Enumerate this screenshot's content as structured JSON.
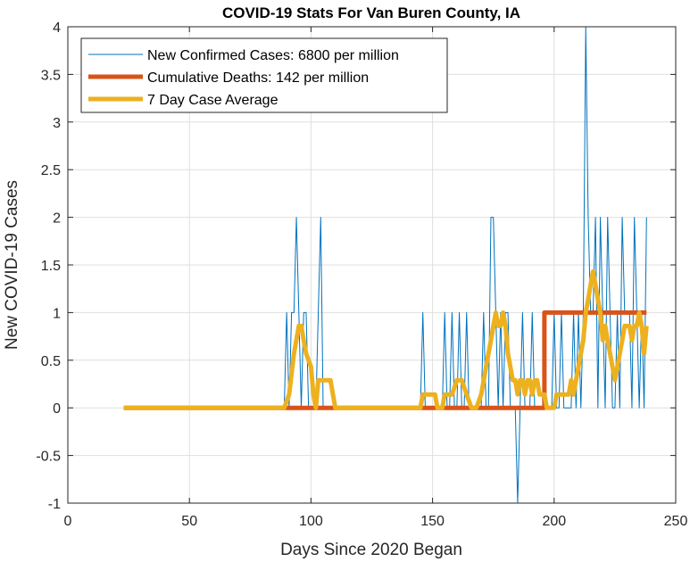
{
  "chart_data": {
    "type": "line",
    "title": "COVID-19 Stats For Van Buren County, IA",
    "xlabel": "Days Since 2020 Began",
    "ylabel": "New COVID-19 Cases",
    "xlim": [
      0,
      250
    ],
    "ylim": [
      -1,
      4
    ],
    "xticks": [
      "0",
      "50",
      "100",
      "150",
      "200",
      "250"
    ],
    "yticks": [
      "-1",
      "-0.5",
      "0",
      "0.5",
      "1",
      "1.5",
      "2",
      "2.5",
      "3",
      "3.5",
      "4"
    ],
    "grid": true,
    "legend_position": "top-left",
    "series": [
      {
        "name": "New Confirmed Cases: 6800 per million",
        "color": "#0072BD",
        "width": "thin",
        "points": [
          [
            23,
            0
          ],
          [
            89,
            0
          ],
          [
            90,
            1
          ],
          [
            91,
            0
          ],
          [
            92,
            1
          ],
          [
            93,
            1
          ],
          [
            94,
            2
          ],
          [
            95,
            1
          ],
          [
            96,
            0
          ],
          [
            97,
            1
          ],
          [
            98,
            1
          ],
          [
            99,
            0
          ],
          [
            100,
            0
          ],
          [
            101,
            0
          ],
          [
            102,
            0
          ],
          [
            103,
            1
          ],
          [
            104,
            2
          ],
          [
            105,
            0
          ],
          [
            106,
            0
          ],
          [
            107,
            0
          ],
          [
            110,
            0
          ],
          [
            145,
            0
          ],
          [
            146,
            1
          ],
          [
            147,
            0
          ],
          [
            148,
            0
          ],
          [
            150,
            0
          ],
          [
            154,
            0
          ],
          [
            155,
            1
          ],
          [
            156,
            0
          ],
          [
            157,
            0
          ],
          [
            158,
            1
          ],
          [
            159,
            0
          ],
          [
            160,
            0
          ],
          [
            161,
            1
          ],
          [
            162,
            0
          ],
          [
            163,
            0
          ],
          [
            164,
            1
          ],
          [
            165,
            0
          ],
          [
            170,
            0
          ],
          [
            171,
            1
          ],
          [
            172,
            0
          ],
          [
            173,
            0
          ],
          [
            174,
            2
          ],
          [
            175,
            2
          ],
          [
            176,
            1
          ],
          [
            177,
            0
          ],
          [
            178,
            1
          ],
          [
            179,
            0
          ],
          [
            180,
            1
          ],
          [
            181,
            1
          ],
          [
            182,
            0
          ],
          [
            183,
            0
          ],
          [
            184,
            0
          ],
          [
            185,
            -1
          ],
          [
            186,
            0
          ],
          [
            187,
            1
          ],
          [
            188,
            0
          ],
          [
            189,
            0
          ],
          [
            190,
            0
          ],
          [
            191,
            1
          ],
          [
            192,
            0
          ],
          [
            193,
            0
          ],
          [
            194,
            0
          ],
          [
            195,
            0
          ],
          [
            196,
            0
          ],
          [
            197,
            0
          ],
          [
            198,
            0
          ],
          [
            199,
            0
          ],
          [
            200,
            1
          ],
          [
            201,
            0
          ],
          [
            202,
            0
          ],
          [
            203,
            1
          ],
          [
            204,
            0
          ],
          [
            205,
            0
          ],
          [
            206,
            0
          ],
          [
            207,
            0
          ],
          [
            208,
            1
          ],
          [
            209,
            0
          ],
          [
            210,
            1
          ],
          [
            211,
            0
          ],
          [
            212,
            1
          ],
          [
            213,
            4
          ],
          [
            214,
            2
          ],
          [
            215,
            1
          ],
          [
            216,
            1
          ],
          [
            217,
            2
          ],
          [
            218,
            0
          ],
          [
            219,
            2
          ],
          [
            220,
            1
          ],
          [
            221,
            0
          ],
          [
            222,
            2
          ],
          [
            223,
            1
          ],
          [
            224,
            0
          ],
          [
            225,
            0
          ],
          [
            226,
            1
          ],
          [
            227,
            0
          ],
          [
            228,
            2
          ],
          [
            229,
            1
          ],
          [
            230,
            1
          ],
          [
            231,
            1
          ],
          [
            232,
            0
          ],
          [
            233,
            2
          ],
          [
            234,
            1
          ],
          [
            235,
            0
          ],
          [
            236,
            1
          ],
          [
            237,
            0
          ],
          [
            238,
            2
          ]
        ]
      },
      {
        "name": "Cumulative Deaths: 142 per million",
        "color": "#D95319",
        "width": "thick",
        "points": [
          [
            23,
            0
          ],
          [
            196,
            0
          ],
          [
            196,
            1
          ],
          [
            238,
            1
          ]
        ]
      },
      {
        "name": "7 Day Case Average",
        "color": "#EDB120",
        "width": "thick",
        "points": [
          [
            23,
            0
          ],
          [
            89,
            0
          ],
          [
            91,
            0.14
          ],
          [
            93,
            0.57
          ],
          [
            95,
            0.86
          ],
          [
            96,
            0.86
          ],
          [
            97,
            0.71
          ],
          [
            98,
            0.57
          ],
          [
            100,
            0.43
          ],
          [
            101,
            0.14
          ],
          [
            102,
            0
          ],
          [
            103,
            0.29
          ],
          [
            108,
            0.29
          ],
          [
            110,
            0
          ],
          [
            145,
            0
          ],
          [
            146,
            0.14
          ],
          [
            151,
            0.14
          ],
          [
            152,
            0
          ],
          [
            154,
            0
          ],
          [
            155,
            0.14
          ],
          [
            158,
            0.14
          ],
          [
            160,
            0.29
          ],
          [
            162,
            0.29
          ],
          [
            164,
            0.14
          ],
          [
            166,
            0
          ],
          [
            168,
            0
          ],
          [
            170,
            0.14
          ],
          [
            172,
            0.43
          ],
          [
            173,
            0.57
          ],
          [
            174,
            0.71
          ],
          [
            175,
            0.86
          ],
          [
            176,
            1
          ],
          [
            177,
            0.86
          ],
          [
            178,
            0.86
          ],
          [
            179,
            1
          ],
          [
            180,
            0.86
          ],
          [
            181,
            0.57
          ],
          [
            182,
            0.43
          ],
          [
            183,
            0.29
          ],
          [
            184,
            0.29
          ],
          [
            185,
            0.14
          ],
          [
            186,
            0.29
          ],
          [
            187,
            0.29
          ],
          [
            188,
            0.14
          ],
          [
            189,
            0.29
          ],
          [
            190,
            0.29
          ],
          [
            191,
            0.14
          ],
          [
            192,
            0.29
          ],
          [
            193,
            0.29
          ],
          [
            194,
            0.14
          ],
          [
            195,
            0.14
          ],
          [
            196,
            0.14
          ],
          [
            197,
            0
          ],
          [
            198,
            0
          ],
          [
            199,
            0
          ],
          [
            200,
            0
          ],
          [
            201,
            0.14
          ],
          [
            202,
            0.14
          ],
          [
            203,
            0.14
          ],
          [
            204,
            0.14
          ],
          [
            205,
            0.14
          ],
          [
            206,
            0.14
          ],
          [
            207,
            0.29
          ],
          [
            208,
            0.14
          ],
          [
            209,
            0.29
          ],
          [
            210,
            0.43
          ],
          [
            211,
            0.57
          ],
          [
            212,
            0.71
          ],
          [
            213,
            1
          ],
          [
            214,
            1.14
          ],
          [
            215,
            1.29
          ],
          [
            216,
            1.43
          ],
          [
            217,
            1.29
          ],
          [
            218,
            1.14
          ],
          [
            219,
            1
          ],
          [
            220,
            0.71
          ],
          [
            221,
            0.86
          ],
          [
            222,
            0.71
          ],
          [
            223,
            0.57
          ],
          [
            224,
            0.43
          ],
          [
            225,
            0.29
          ],
          [
            226,
            0.43
          ],
          [
            227,
            0.57
          ],
          [
            228,
            0.71
          ],
          [
            229,
            0.86
          ],
          [
            230,
            0.86
          ],
          [
            231,
            0.86
          ],
          [
            232,
            0.71
          ],
          [
            233,
            0.86
          ],
          [
            234,
            0.86
          ],
          [
            235,
            1
          ],
          [
            236,
            0.86
          ],
          [
            237,
            0.57
          ],
          [
            238,
            0.86
          ]
        ]
      }
    ]
  }
}
